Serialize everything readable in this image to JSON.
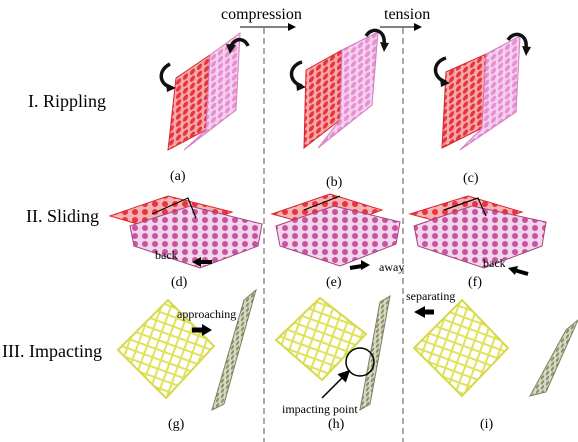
{
  "header": {
    "compression": "compression",
    "tension": "tension"
  },
  "rows": [
    {
      "label": "I. Rippling"
    },
    {
      "label": "II. Sliding"
    },
    {
      "label": "III. Impacting"
    }
  ],
  "panels": [
    "(a)",
    "(b)",
    "(c)",
    "(d)",
    "(e)",
    "(f)",
    "(g)",
    "(h)",
    "(i)"
  ],
  "annotations": {
    "d_back": "back",
    "e_away": "away",
    "f_back": "back",
    "g_approaching": "approaching",
    "h_impacting_point": "impacting point",
    "i_separating": "separating"
  },
  "colors": {
    "red_sheet": "#e8343c",
    "pink_sheet": "#e78fd2",
    "magenta_sheet": "#c6559f",
    "yellow_sheet": "#e9ec7a",
    "olive_sheet": "#9ea07a"
  }
}
